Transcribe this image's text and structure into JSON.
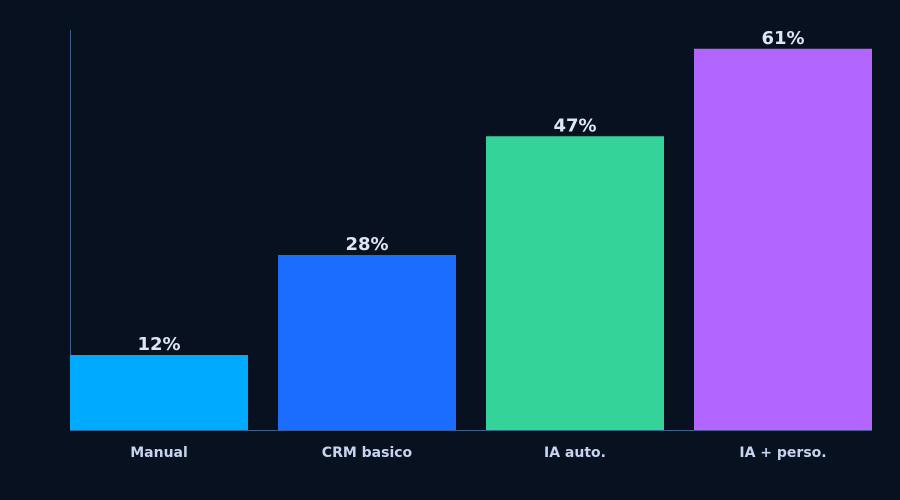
{
  "chart_data": {
    "type": "bar",
    "categories": [
      "Manual",
      "CRM basico",
      "IA auto.",
      "IA + perso."
    ],
    "values": [
      12,
      28,
      47,
      61
    ],
    "value_labels": [
      "12%",
      "28%",
      "47%",
      "61%"
    ],
    "colors": [
      "#00aaff",
      "#1a6dff",
      "#34d399",
      "#b366ff"
    ],
    "ylim": [
      0,
      64
    ]
  }
}
